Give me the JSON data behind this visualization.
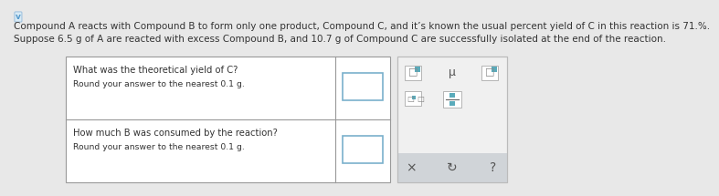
{
  "line1": "Compound A reacts with Compound B to form only one product, Compound C, and it’s known the usual percent yield of C in this reaction is 71.%.",
  "line2": "Suppose 6.5 g of A are reacted with excess Compound B, and 10.7 g of Compound C are successfully isolated at the end of the reaction.",
  "q1_line1": "What was the theoretical yield of C?",
  "q1_line2": "Round your answer to the nearest 0.1 g.",
  "q2_line1": "How much B was consumed by the reaction?",
  "q2_line2": "Round your answer to the nearest 0.1 g.",
  "bg_color": "#e8e8e8",
  "table_bg": "#ffffff",
  "input_box_color": "#ffffff",
  "input_box_border": "#7ab0cc",
  "right_panel_bg": "#f0f0f0",
  "right_panel_border": "#bbbbbb",
  "text_color": "#333333",
  "font_size_main": 7.5,
  "font_size_table": 7.2,
  "checkmark_color": "#5599cc",
  "teal_color": "#5aabbb",
  "bottom_bar_color": "#d0d4d8"
}
